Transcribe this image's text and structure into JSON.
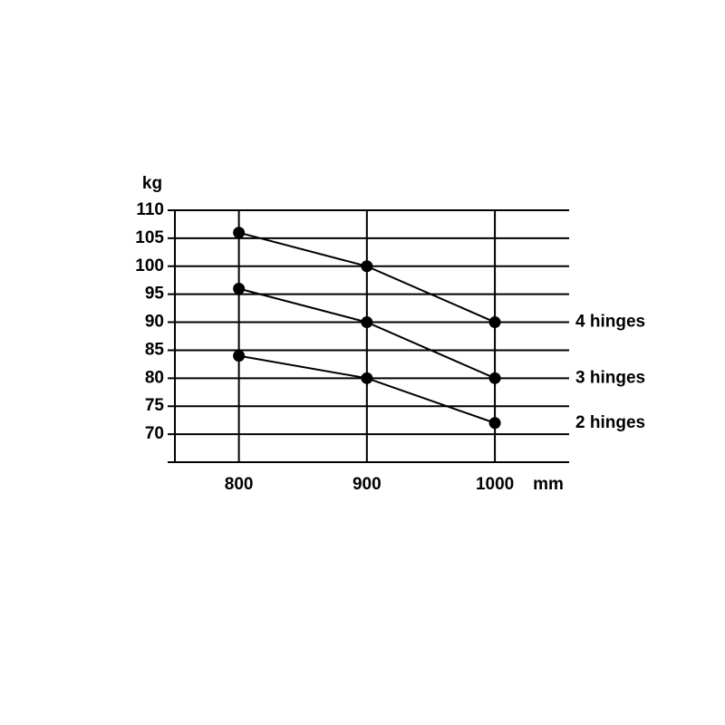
{
  "chart_data": {
    "type": "line",
    "x_label": "mm",
    "y_label": "kg",
    "x": [
      800,
      900,
      1000
    ],
    "series": [
      {
        "name": "4 hinges",
        "color": "#000000",
        "values": [
          106,
          100,
          90
        ]
      },
      {
        "name": "3 hinges",
        "color": "#000000",
        "values": [
          96,
          90,
          80
        ]
      },
      {
        "name": "2 hinges",
        "color": "#000000",
        "values": [
          84,
          80,
          72
        ]
      }
    ],
    "xlim": [
      750,
      1058
    ],
    "xticks": [
      800,
      900,
      1000
    ],
    "ylim": [
      65,
      110
    ],
    "yticks": [
      70,
      75,
      80,
      85,
      90,
      95,
      100,
      105,
      110
    ],
    "grid": true
  }
}
